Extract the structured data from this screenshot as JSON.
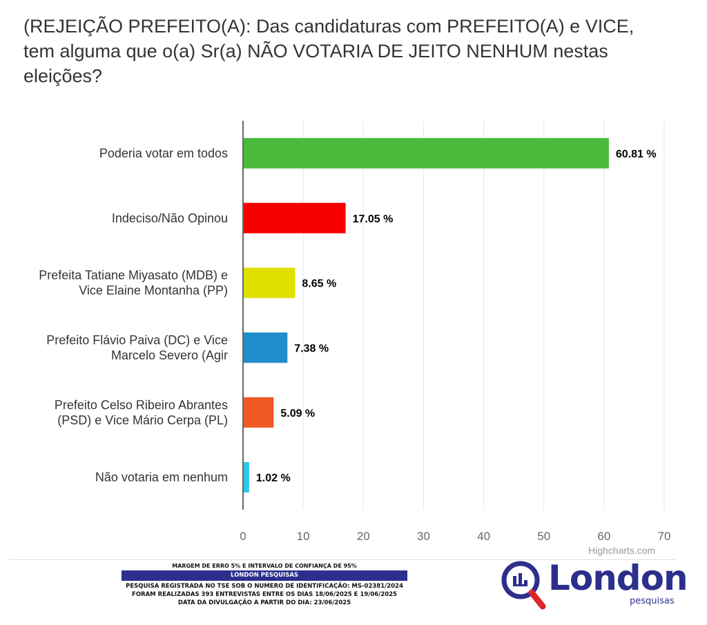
{
  "title": "(REJEIÇÃO PREFEITO(A): Das candidaturas com PREFEITO(A) e VICE, tem alguma que o(a) Sr(a) NÃO VOTARIA DE JEITO NENHUM nestas eleições?",
  "credits": "Highcharts.com",
  "footer": {
    "margin": "MARGEM DE ERRO 5% E INTERVALO DE CONFIANÇA DE 95%",
    "company": "LONDON PESQUISAS",
    "registration": "PESQUISA REGISTRADA NO TSE SOB O NUMERO DE IDENTIFICAÇÃO: MS-02381/2024",
    "interviews": "FORAM REALIZADAS 393 ENTREVISTAS ENTRE OS DIAS 18/06/2025 E 19/06/2025",
    "release": "DATA DA DIVULGAÇÃO A PARTIR DO DIA: 23/06/2025"
  },
  "logo": {
    "word": "London",
    "sub": "pesquisas",
    "color": "#2c2f8c",
    "accent": "#e0242b"
  },
  "chart_data": {
    "type": "bar",
    "orientation": "horizontal",
    "title": "(REJEIÇÃO PREFEITO(A): Das candidaturas com PREFEITO(A) e VICE, tem alguma que o(a) Sr(a) NÃO VOTARIA DE JEITO NENHUM nestas eleições?",
    "categories": [
      [
        "Poderia votar em todos"
      ],
      [
        "Indeciso/Não Opinou"
      ],
      [
        "Prefeita Tatiane Miyasato (MDB) e",
        "Vice Elaine Montanha (PP)"
      ],
      [
        "Prefeito Flávio Paiva (DC) e Vice",
        "Marcelo Severo (Agir"
      ],
      [
        "Prefeito Celso Ribeiro Abrantes",
        "(PSD) e Vice Mário Cerpa (PL)"
      ],
      [
        "Não votaria em nenhum"
      ]
    ],
    "values": [
      60.81,
      17.05,
      8.65,
      7.38,
      5.09,
      1.02
    ],
    "data_labels": [
      "60.81 %",
      "17.05 %",
      "8.65 %",
      "7.38 %",
      "5.09 %",
      "1.02 %"
    ],
    "colors": [
      "#4cba3c",
      "#f90000",
      "#dfe000",
      "#1f8ccb",
      "#f05a22",
      "#2bc6e8"
    ],
    "xlim": [
      0,
      70
    ],
    "ticks": [
      0,
      10,
      20,
      30,
      40,
      50,
      60,
      70
    ],
    "grid": true
  }
}
